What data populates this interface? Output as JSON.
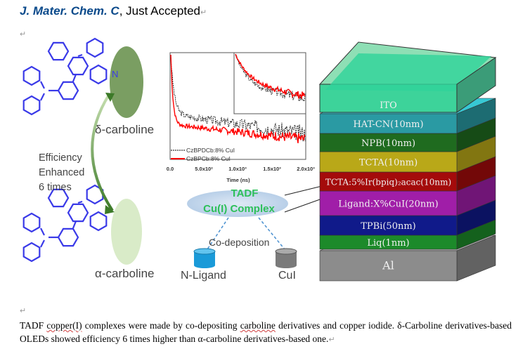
{
  "header": {
    "journal": "J. Mater. Chem. C",
    "status": ", Just Accepted",
    "para_mark": "↵"
  },
  "figure": {
    "molecules": {
      "delta_label": "δ-carboline",
      "alpha_label": "α-carboline",
      "n_atom": "N",
      "arrow_text": [
        "Efficiency",
        "Enhanced",
        "6 times"
      ]
    },
    "plot": {
      "xlabel": "Time (ns)",
      "xticks": [
        "0.0",
        "5.0x10²",
        "1.0x10³",
        "1.5x10³",
        "2.0x10³"
      ],
      "legend": [
        "CzBPDCb:8% CuI",
        "CzBPCb:8% CuI"
      ],
      "series_colors": [
        "#000000",
        "#ff0000"
      ]
    },
    "complex": {
      "line1": "TADF",
      "line2": "Cu(I) Complex",
      "process": "Co-deposition",
      "ligand": "N-Ligand",
      "cui": "CuI"
    },
    "device_layers": [
      {
        "label": "ITO",
        "color": "#5fd6a0"
      },
      {
        "label": "HAT-CN(10nm)",
        "color": "#2a9aa3"
      },
      {
        "label": "NPB(10nm)",
        "color": "#1f6b1f"
      },
      {
        "label": "TCTA(10nm)",
        "color": "#b9a818"
      },
      {
        "label": "TCTA:5%Ir(bpiq)₂acac(10nm)",
        "color": "#a40b0b"
      },
      {
        "label": "Ligand:X%CuI(20nm)",
        "color": "#a01ea8"
      },
      {
        "label": "TPBi(50nm)",
        "color": "#101a8a"
      },
      {
        "label": "Liq(1nm)",
        "color": "#1c8a2a"
      },
      {
        "label": "Al",
        "color": "#8c8c8c"
      }
    ]
  },
  "abstract": {
    "s1a": "TADF ",
    "s1b": "copper(I)",
    "s1c": " complexes were made by co-depositing ",
    "s1d": "carboline",
    "s1e": " derivatives and copper iodide. ",
    "s2": "δ-Carboline derivatives-based OLEDs showed efficiency 6 times higher than α-carboline derivatives-based one."
  }
}
